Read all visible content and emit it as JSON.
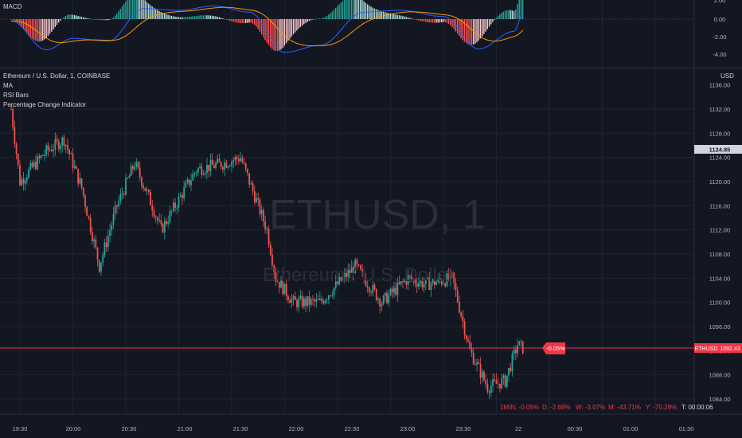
{
  "macd": {
    "label": "MACD",
    "ticks": [
      "0.00",
      "-2.00",
      "-4.00"
    ],
    "pane_top_value": "2.00",
    "colors": {
      "macd_line": "#2962ff",
      "signal_line": "#ff9800",
      "hist_pos": "#26a69a",
      "hist_pos_light": "#b2dfdb",
      "hist_neg": "#ff5252",
      "hist_neg_light": "#ffcdd2"
    }
  },
  "main": {
    "symbol_title": "Ethereum / U.S. Dollar, 1, COINBASE",
    "indicators": [
      "MA",
      "RSI Bars",
      "Percentage Change Indicator"
    ],
    "currency": "USD",
    "price_ticks": [
      "1132.00",
      "1128.00",
      "1124.00",
      "1120.00",
      "1116.00",
      "1112.00",
      "1108.00",
      "1104.00",
      "1100.00",
      "1096.00",
      "1092.00",
      "1088.00",
      "1084.00"
    ],
    "top_cut_tick": "1136.00",
    "current_marker_label": "1124.85",
    "current_price_symbol": "ETHUSD",
    "current_price": "1092.43",
    "pct_bubble": "-0.05%",
    "watermark_symbol": "ETHUSD, 1",
    "watermark_name": "Ethereum / U.S. Dollar",
    "colors": {
      "up": "#26a69a",
      "down": "#ef5350",
      "price_line": "#f23645",
      "grid": "#1f2330"
    }
  },
  "time_axis": [
    "19:30",
    "20:00",
    "20:30",
    "21:00",
    "21:30",
    "22:00",
    "22:30",
    "23:00",
    "23:30",
    "22",
    "00:30",
    "01:00",
    "01:30"
  ],
  "status": {
    "min1": "1MIN: -0.05%",
    "d": "D: -2.88%",
    "w": "W: -3.07%",
    "m": "M: -43.71%",
    "y": "Y: -70.28%",
    "t": "T: 00:00:06"
  },
  "chart_data": {
    "type": "candlestick",
    "title": "Ethereum / U.S. Dollar, 1, COINBASE",
    "ylim": [
      1082,
      1134
    ],
    "x_labels": [
      "19:30",
      "20:00",
      "20:30",
      "21:00",
      "21:30",
      "22:00",
      "22:30",
      "23:00",
      "23:30",
      "22"
    ],
    "approx_close_path": [
      {
        "t": "19:25",
        "close": 1132
      },
      {
        "t": "19:30",
        "close": 1120
      },
      {
        "t": "19:45",
        "close": 1125
      },
      {
        "t": "19:55",
        "close": 1127
      },
      {
        "t": "20:05",
        "close": 1119
      },
      {
        "t": "20:15",
        "close": 1106
      },
      {
        "t": "20:25",
        "close": 1116
      },
      {
        "t": "20:35",
        "close": 1123
      },
      {
        "t": "20:45",
        "close": 1116
      },
      {
        "t": "20:50",
        "close": 1112
      },
      {
        "t": "21:00",
        "close": 1117
      },
      {
        "t": "21:10",
        "close": 1122
      },
      {
        "t": "21:25",
        "close": 1123
      },
      {
        "t": "21:35",
        "close": 1124
      },
      {
        "t": "21:50",
        "close": 1112
      },
      {
        "t": "21:55",
        "close": 1104
      },
      {
        "t": "22:05",
        "close": 1100
      },
      {
        "t": "22:20",
        "close": 1100
      },
      {
        "t": "22:40",
        "close": 1106
      },
      {
        "t": "22:55",
        "close": 1100
      },
      {
        "t": "23:10",
        "close": 1104
      },
      {
        "t": "23:20",
        "close": 1103
      },
      {
        "t": "23:35",
        "close": 1104
      },
      {
        "t": "23:45",
        "close": 1092
      },
      {
        "t": "23:55",
        "close": 1086
      },
      {
        "t": "00:05",
        "close": 1087
      },
      {
        "t": "00:12",
        "close": 1093
      },
      {
        "t": "00:15",
        "close": 1092.43
      }
    ],
    "macd_ylim": [
      -5,
      2.2
    ],
    "macd_path": [
      {
        "t": "19:25",
        "macd": -0.2
      },
      {
        "t": "19:45",
        "macd": -3.5
      },
      {
        "t": "20:00",
        "macd": -2.2
      },
      {
        "t": "20:20",
        "macd": -2.5
      },
      {
        "t": "20:40",
        "macd": 1.2
      },
      {
        "t": "21:00",
        "macd": 1.0
      },
      {
        "t": "21:20",
        "macd": 1.5
      },
      {
        "t": "21:40",
        "macd": 0.8
      },
      {
        "t": "22:00",
        "macd": -3.8
      },
      {
        "t": "22:20",
        "macd": -3.0
      },
      {
        "t": "22:45",
        "macd": 0.8
      },
      {
        "t": "23:05",
        "macd": 1.0
      },
      {
        "t": "23:30",
        "macd": 0.3
      },
      {
        "t": "23:50",
        "macd": -3.4
      },
      {
        "t": "00:10",
        "macd": -1.4
      },
      {
        "t": "00:15",
        "macd": 0.6
      }
    ]
  }
}
